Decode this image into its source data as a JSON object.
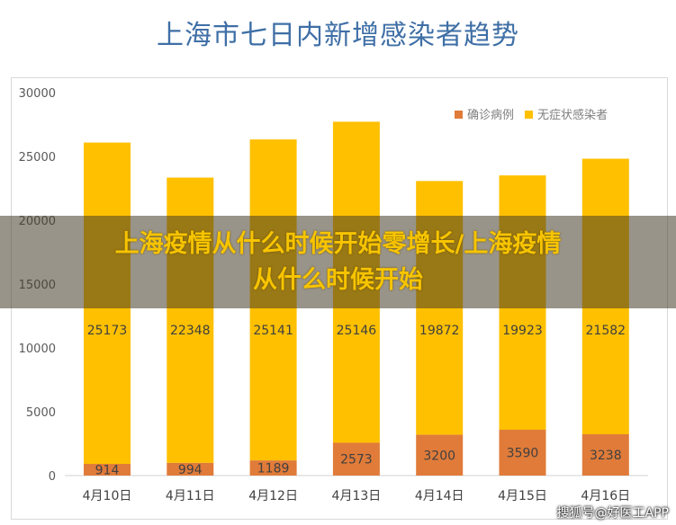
{
  "chart_data": {
    "type": "bar",
    "stacked": true,
    "title": "上海市七日内新增感染者趋势",
    "categories": [
      "4月10日",
      "4月11日",
      "4月12日",
      "4月13日",
      "4月14日",
      "4月15日",
      "4月16日"
    ],
    "series": [
      {
        "name": "确诊病例",
        "color": "#e07b39",
        "values": [
          914,
          994,
          1189,
          2573,
          3200,
          3590,
          3238
        ]
      },
      {
        "name": "无症状感染者",
        "color": "#ffc000",
        "values": [
          25173,
          22348,
          25141,
          25146,
          19872,
          19923,
          21582
        ]
      }
    ],
    "ylim": [
      0,
      30000
    ],
    "yticks": [
      0,
      5000,
      10000,
      15000,
      20000,
      25000,
      30000
    ],
    "grid": false,
    "legend": "top-right"
  },
  "overlay": {
    "line1": "上海疫情从什么时候开始零增长/上海疫情",
    "line2": "从什么时候开始"
  },
  "watermark": "搜狐号@好医工APP"
}
